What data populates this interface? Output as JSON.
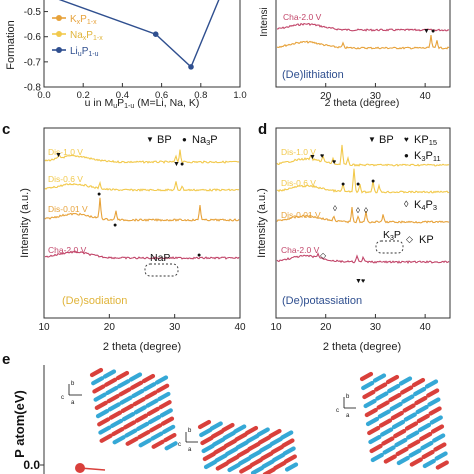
{
  "chart_data": [
    {
      "panel": "a",
      "type": "line",
      "ylabel": "Formation",
      "xlabel": "u in M",
      "xlabel_rest": "(M=Li, Na, K)",
      "yticks": [
        "-0.5",
        "-0.6",
        "-0.7",
        "-0.8"
      ],
      "xticks": [
        "0.0",
        "0.2",
        "0.4",
        "0.6",
        "0.8",
        "1.0"
      ],
      "ylim": [
        -0.8,
        -0.45
      ],
      "xlim": [
        0.0,
        1.0
      ],
      "legend": [
        "K",
        "Na",
        "Li"
      ],
      "series": [
        {
          "name": "K",
          "color": "#e7a23a",
          "x": [],
          "y": []
        },
        {
          "name": "Na",
          "color": "#f2d15c",
          "x": [],
          "y": []
        },
        {
          "name": "Li",
          "color": "#2f4f8f",
          "x": [
            0.0,
            0.57,
            0.75,
            1.0
          ],
          "y": [
            -0.43,
            -0.59,
            -0.72,
            -0.25
          ]
        }
      ]
    },
    {
      "panel": "b",
      "type": "line",
      "ylabel": "Intensi",
      "xlabel": "2 theta (degree)",
      "xticks": [
        "20",
        "30",
        "40"
      ],
      "xlim": [
        10,
        45
      ],
      "annotation": "(De)lithiation",
      "trace_labels": [
        "Cha-2.0 V"
      ],
      "series": [
        {
          "name": "Cha-2.0 V",
          "color": "#c2466a"
        }
      ]
    },
    {
      "panel": "c",
      "type": "line",
      "ylabel": "Intensity (a.u.)",
      "xlabel": "2 theta (degree)",
      "xticks": [
        "10",
        "20",
        "30",
        "40"
      ],
      "xlim": [
        10,
        40
      ],
      "legend": [
        "BP",
        "Na3P"
      ],
      "annotation": "(De)sodiation",
      "box_label": "NaP",
      "trace_labels": [
        "Dis-1.0 V",
        "Dis-0.6 V",
        "Dis-0.01 V",
        "Cha-2.0 V"
      ],
      "series": [
        {
          "name": "Dis-1.0 V",
          "color": "#f2c94c"
        },
        {
          "name": "Dis-0.6 V",
          "color": "#f2c94c"
        },
        {
          "name": "Dis-0.01 V",
          "color": "#e7a23a"
        },
        {
          "name": "Cha-2.0 V",
          "color": "#c2466a"
        }
      ]
    },
    {
      "panel": "d",
      "type": "line",
      "ylabel": "Intensity (a.u.)",
      "xlabel": "2 theta (degree)",
      "xticks": [
        "10",
        "20",
        "30",
        "40"
      ],
      "xlim": [
        10,
        45
      ],
      "legend": [
        "BP",
        "KP15",
        "K3P11",
        "K4P3",
        "KP"
      ],
      "annotation": "(De)potassiation",
      "box_label": "K3P",
      "trace_labels": [
        "Dis-1.0 V",
        "Dis-0.6 V",
        "Dis-0.01 V",
        "Cha-2.0 V"
      ],
      "series": [
        {
          "name": "Dis-1.0 V",
          "color": "#f2c94c"
        },
        {
          "name": "Dis-0.6 V",
          "color": "#f2c94c"
        },
        {
          "name": "Dis-0.01 V",
          "color": "#e7a23a"
        },
        {
          "name": "Cha-2.0 V",
          "color": "#c2466a"
        }
      ]
    },
    {
      "panel": "e",
      "type": "other",
      "ylabel": "P atom(eV)",
      "ytick": "0.0"
    }
  ],
  "labels": {
    "a_leg_K": "K",
    "a_leg_K_sub": "x",
    "a_leg_K_p": "P",
    "a_leg_K_sub2": "1-x",
    "a_leg_Na": "Na",
    "a_leg_Na_sub": "x",
    "a_leg_Na_p": "P",
    "a_leg_Na_sub2": "1-x",
    "a_leg_Li": "Li",
    "a_leg_Li_sub": "u",
    "a_leg_Li_p": "P",
    "a_leg_Li_sub2": "1-u",
    "a_xlabel_sub": "u",
    "a_xlabel_p": "P",
    "a_xlabel_sub2": "1-u",
    "c_leg_bp": "BP",
    "c_leg_na3p": "Na",
    "c_leg_na3p_sub": "3",
    "c_leg_na3p_p": "P",
    "d_leg_bp": "BP",
    "d_leg_kp15": "KP",
    "d_leg_kp15_sub": "15",
    "d_leg_k3p11": "K",
    "d_leg_k3p11_sub": "3",
    "d_leg_k3p11_p": "P",
    "d_leg_k3p11_sub2": "11",
    "d_leg_k4p3": "K",
    "d_leg_k4p3_sub": "4",
    "d_leg_k4p3_p": "P",
    "d_leg_k4p3_sub2": "3",
    "d_leg_kp": "KP",
    "d_box": "K",
    "d_box_sub": "3",
    "d_box_p": "P",
    "panel_c": "c",
    "panel_d": "d",
    "panel_e": "e",
    "axis_c_arrow": "c",
    "axis_b_arrow": "b",
    "axis_a_arrow": "a"
  }
}
